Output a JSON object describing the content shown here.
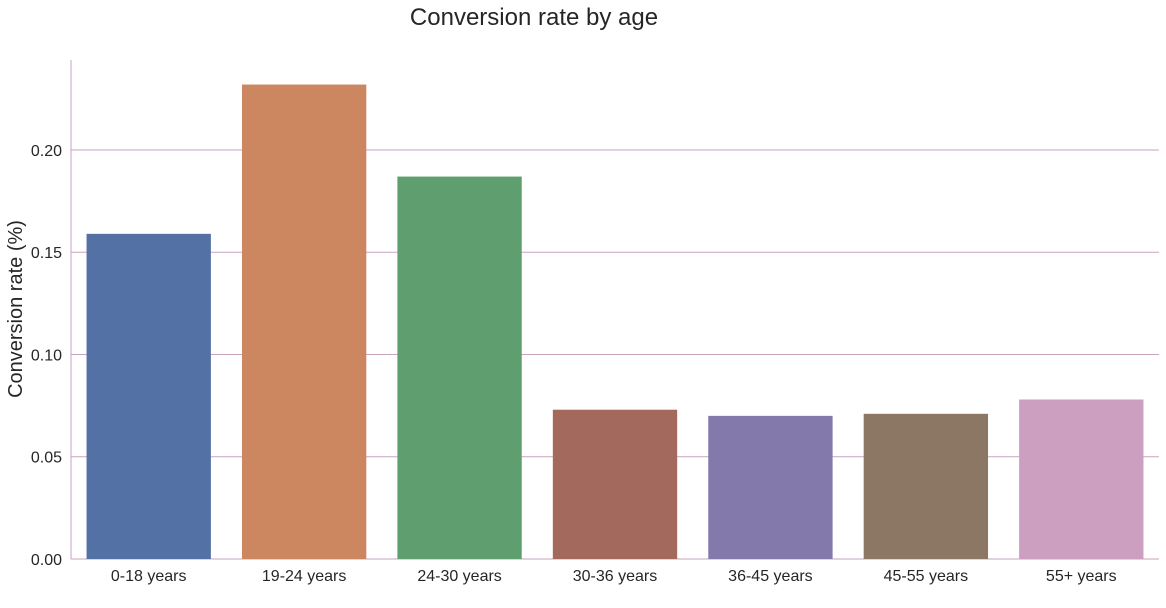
{
  "chart_data": {
    "type": "bar",
    "title": "Conversion rate by age",
    "xlabel": "",
    "ylabel": "Conversion rate (%)",
    "categories": [
      "0-18 years",
      "19-24 years",
      "24-30 years",
      "30-36 years",
      "36-45 years",
      "45-55 years",
      "55+ years"
    ],
    "values": [
      0.159,
      0.232,
      0.187,
      0.073,
      0.07,
      0.071,
      0.078
    ],
    "ylim": [
      0,
      0.244
    ],
    "yticks": [
      0.0,
      0.05,
      0.1,
      0.15,
      0.2
    ],
    "ytick_labels": [
      "0.00",
      "0.05",
      "0.10",
      "0.15",
      "0.20"
    ],
    "colors": [
      "#5471a6",
      "#cd8760",
      "#5f9e6f",
      "#a3695d",
      "#8479ab",
      "#8c7764",
      "#cc9fc0"
    ],
    "grid": "horizontal",
    "legend": "none"
  }
}
